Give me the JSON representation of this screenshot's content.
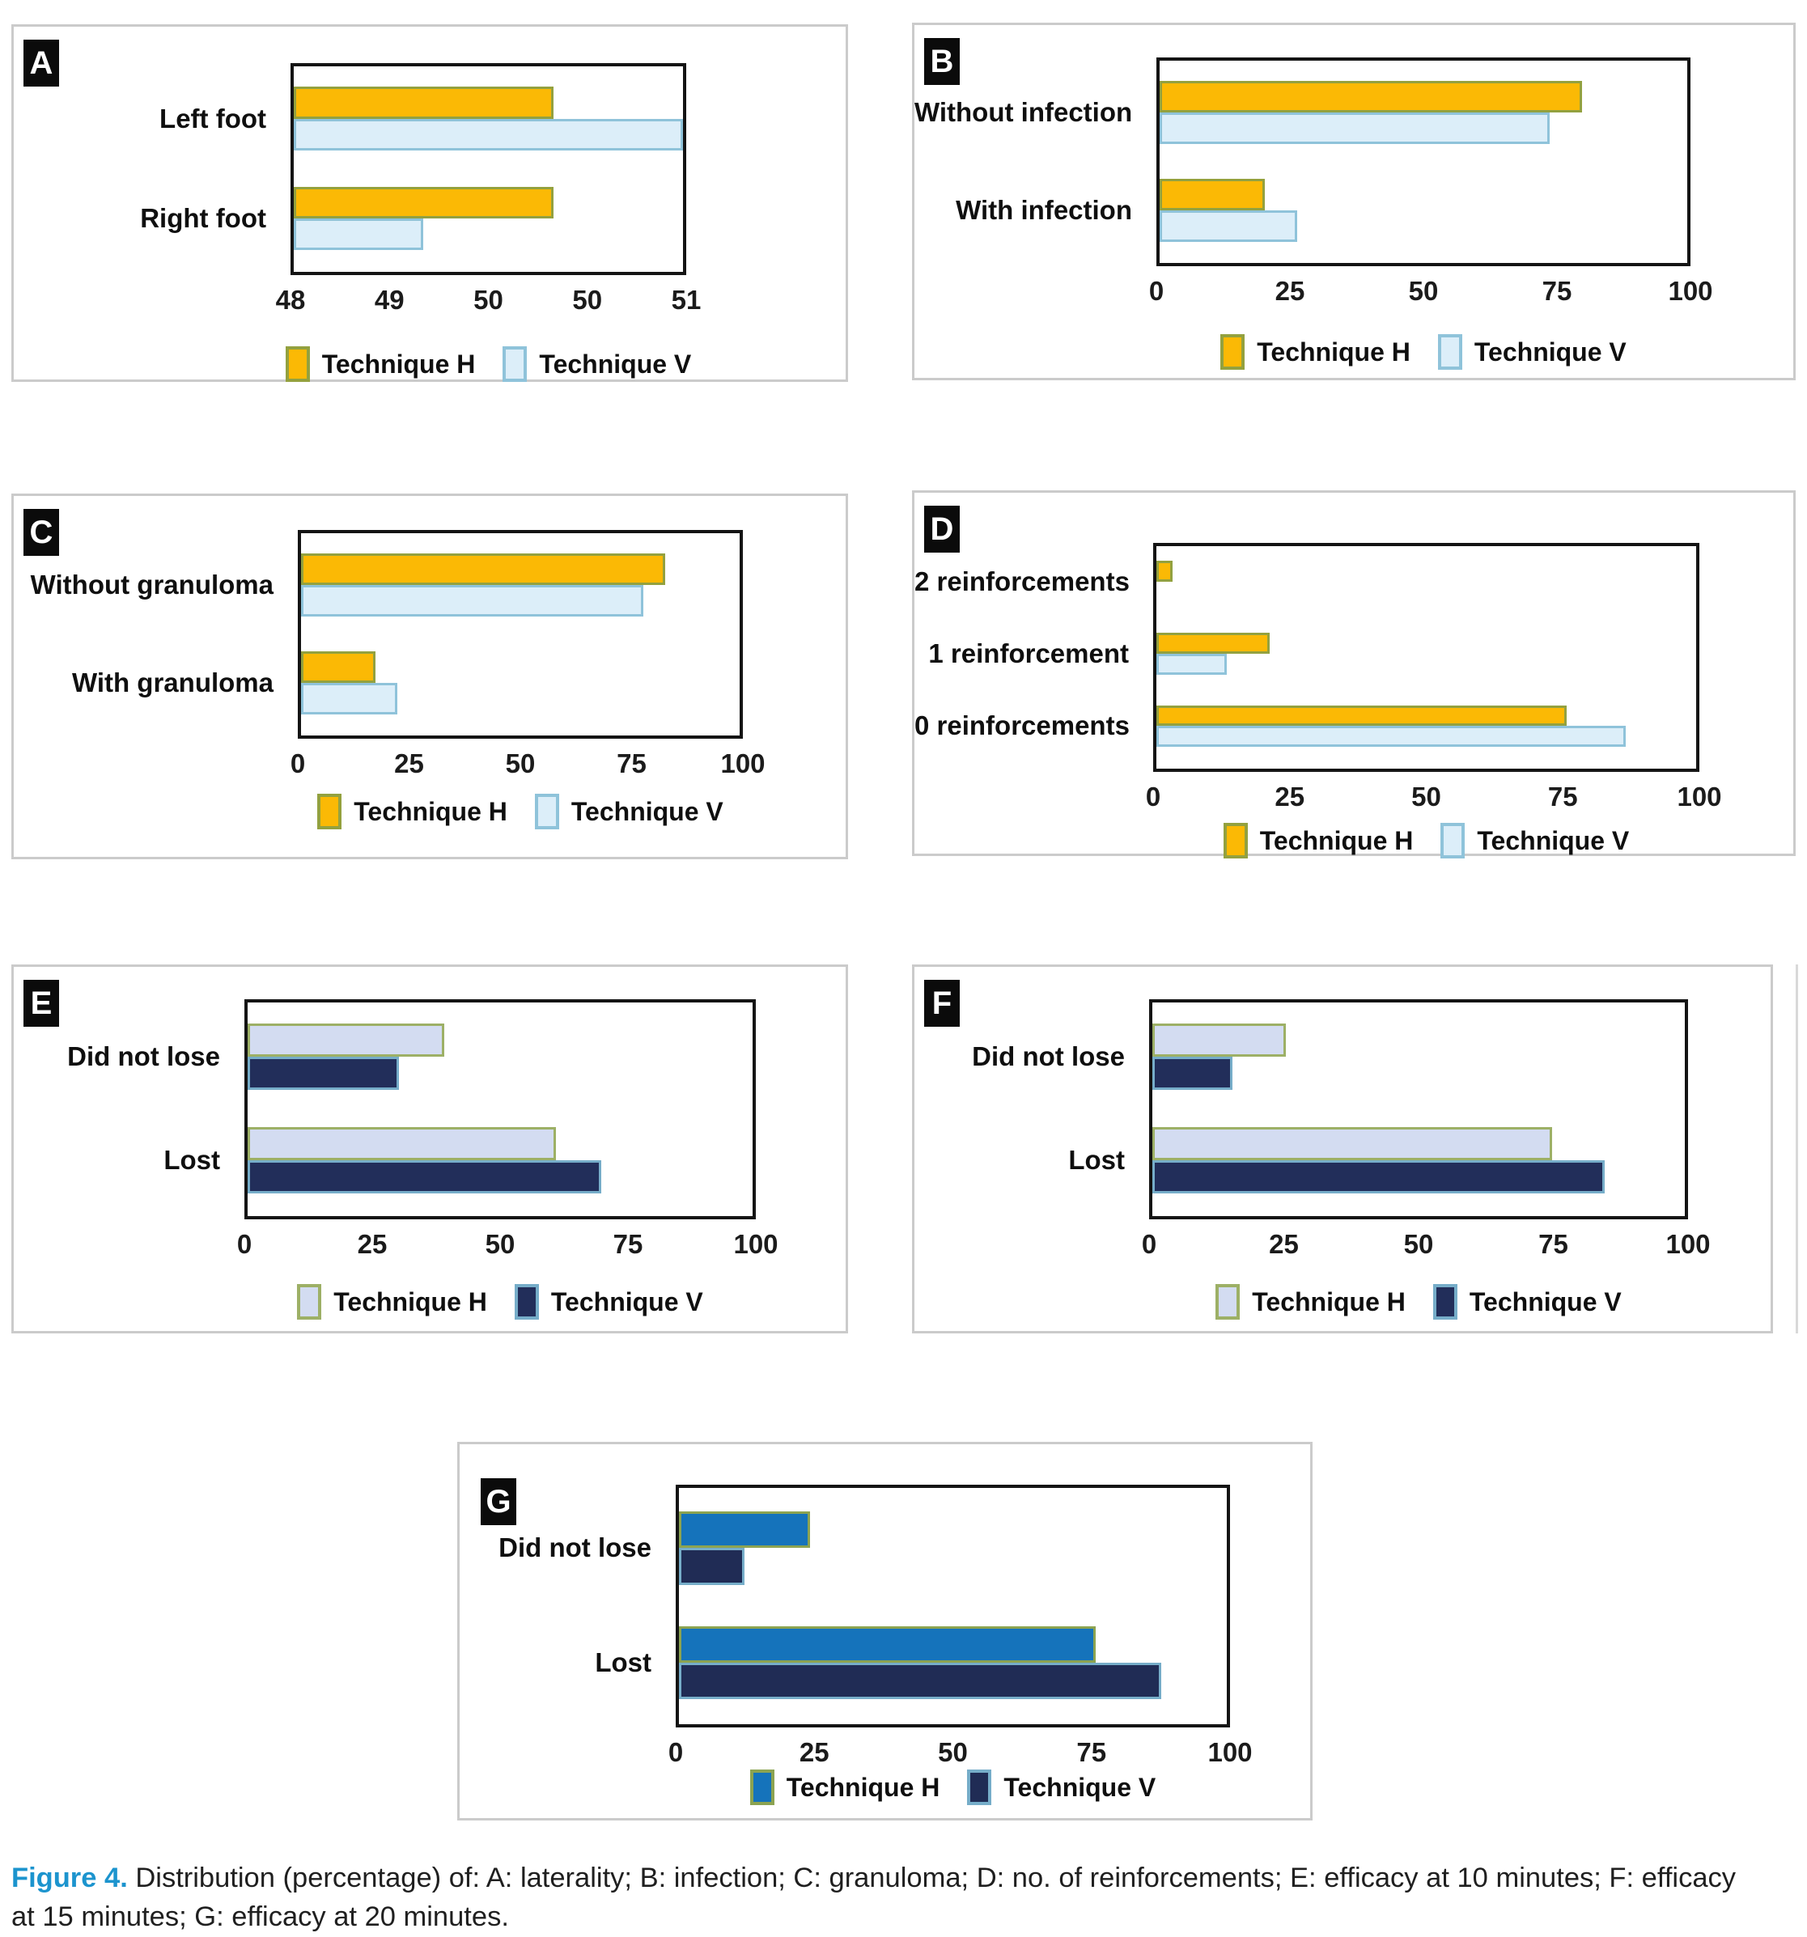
{
  "figure": {
    "legend_labels": [
      "Technique H",
      "Technique V"
    ]
  },
  "caption": {
    "prefix": "Figure 4.",
    "body": " Distribution (percentage) of: A: laterality; B: infection; C: granuloma; D: no. of reinforcements; E: efficacy at 10 minutes; F: efficacy at 15 minutes; G: efficacy at 20 minutes."
  },
  "colors": {
    "yellow": "#FBB905",
    "yellow_border": "#93A13F",
    "lightblue": "#DCEEF9",
    "lightblue_border": "#8FC3DA",
    "lavender": "#D3DCF1",
    "lavender_border": "#9DB066",
    "navy": "#222E5A",
    "navy_border": "#76ADC9",
    "mediumblue": "#1573BB",
    "mediumblue_border": "#8CA351",
    "caption_accent": "#1C94CE"
  },
  "chart_data": [
    {
      "id": "A",
      "type": "bar",
      "orientation": "horizontal",
      "topic": "laterality",
      "categories": [
        "Left foot",
        "Right foot"
      ],
      "series": [
        {
          "name": "Technique H",
          "fill": "#FBB905",
          "border": "#93A13F",
          "values": [
            50,
            50
          ]
        },
        {
          "name": "Technique V",
          "fill": "#DCEEF9",
          "border": "#8FC3DA",
          "values": [
            51,
            49
          ]
        }
      ],
      "xlim": [
        48,
        51
      ],
      "xticks": [
        "48",
        "49",
        "50",
        "50",
        "51"
      ],
      "legend_position": "bottom"
    },
    {
      "id": "B",
      "type": "bar",
      "orientation": "horizontal",
      "topic": "infection",
      "categories": [
        "Without infection",
        "With infection"
      ],
      "series": [
        {
          "name": "Technique H",
          "fill": "#FBB905",
          "border": "#93A13F",
          "values": [
            80,
            20
          ]
        },
        {
          "name": "Technique V",
          "fill": "#DCEEF9",
          "border": "#8FC3DA",
          "values": [
            74,
            26
          ]
        }
      ],
      "xlim": [
        0,
        100
      ],
      "xticks": [
        "0",
        "25",
        "50",
        "75",
        "100"
      ],
      "legend_position": "bottom"
    },
    {
      "id": "C",
      "type": "bar",
      "orientation": "horizontal",
      "topic": "granuloma",
      "categories": [
        "Without granuloma",
        "With granuloma"
      ],
      "series": [
        {
          "name": "Technique H",
          "fill": "#FBB905",
          "border": "#93A13F",
          "values": [
            83,
            17
          ]
        },
        {
          "name": "Technique V",
          "fill": "#DCEEF9",
          "border": "#8FC3DA",
          "values": [
            78,
            22
          ]
        }
      ],
      "xlim": [
        0,
        100
      ],
      "xticks": [
        "0",
        "25",
        "50",
        "75",
        "100"
      ],
      "legend_position": "bottom"
    },
    {
      "id": "D",
      "type": "bar",
      "orientation": "horizontal",
      "topic": "no. of reinforcements",
      "categories": [
        "2 reinforcements",
        "1 reinforcement",
        "0 reinforcements"
      ],
      "series": [
        {
          "name": "Technique H",
          "fill": "#FBB905",
          "border": "#93A13F",
          "values": [
            3,
            21,
            76
          ]
        },
        {
          "name": "Technique V",
          "fill": "#DCEEF9",
          "border": "#8FC3DA",
          "values": [
            0,
            13,
            87
          ]
        }
      ],
      "xlim": [
        0,
        100
      ],
      "xticks": [
        "0",
        "25",
        "50",
        "75",
        "100"
      ],
      "legend_position": "bottom"
    },
    {
      "id": "E",
      "type": "bar",
      "orientation": "horizontal",
      "topic": "efficacy at 10 minutes",
      "categories": [
        "Did not lose",
        "Lost"
      ],
      "series": [
        {
          "name": "Technique H",
          "fill": "#D3DCF1",
          "border": "#9DB066",
          "values": [
            39,
            61
          ]
        },
        {
          "name": "Technique V",
          "fill": "#222E5A",
          "border": "#76ADC9",
          "values": [
            30,
            70
          ]
        }
      ],
      "xlim": [
        0,
        100
      ],
      "xticks": [
        "0",
        "25",
        "50",
        "75",
        "100"
      ],
      "legend_position": "bottom"
    },
    {
      "id": "F",
      "type": "bar",
      "orientation": "horizontal",
      "topic": "efficacy at 15 minutes",
      "categories": [
        "Did not lose",
        "Lost"
      ],
      "series": [
        {
          "name": "Technique H",
          "fill": "#D3DCF1",
          "border": "#9DB066",
          "values": [
            25,
            75
          ]
        },
        {
          "name": "Technique V",
          "fill": "#222E5A",
          "border": "#76ADC9",
          "values": [
            15,
            85
          ]
        }
      ],
      "xlim": [
        0,
        100
      ],
      "xticks": [
        "0",
        "25",
        "50",
        "75",
        "100"
      ],
      "legend_position": "bottom"
    },
    {
      "id": "G",
      "type": "bar",
      "orientation": "horizontal",
      "topic": "efficacy at 20 minutes",
      "categories": [
        "Did not lose",
        "Lost"
      ],
      "series": [
        {
          "name": "Technique H",
          "fill": "#1573BB",
          "border": "#8CA351",
          "values": [
            24,
            76
          ]
        },
        {
          "name": "Technique V",
          "fill": "#202C55",
          "border": "#76ADC9",
          "values": [
            12,
            88
          ]
        }
      ],
      "xlim": [
        0,
        100
      ],
      "xticks": [
        "0",
        "25",
        "50",
        "75",
        "100"
      ],
      "legend_position": "bottom"
    }
  ]
}
